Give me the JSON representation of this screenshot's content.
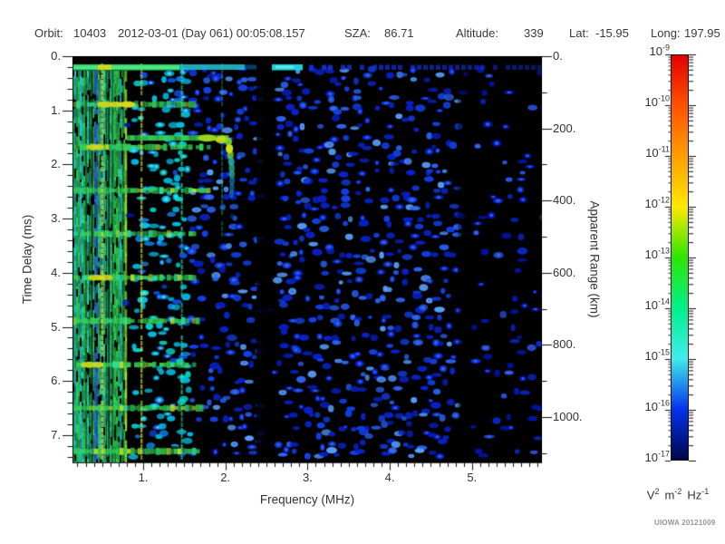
{
  "header": {
    "orbit_label": "Orbit:",
    "orbit_value": "10403",
    "datetime": "2012-03-01 (Day 061) 00:05:08.157",
    "sza_label": "SZA:",
    "sza_value": "86.71",
    "altitude_label": "Altitude:",
    "altitude_value": "339",
    "lat_label": "Lat:",
    "lat_value": "-15.95",
    "long_label": "Long:",
    "long_value": "197.95"
  },
  "watermark": "UIOWA 20121009",
  "chart_data": {
    "type": "heatmap",
    "description": "Radar sounder ionogram: echo spectral density vs frequency and apparent time delay",
    "xlabel": "Frequency (MHz)",
    "ylabel": "Time Delay (ms)",
    "y2label": "Apparent Range (km)",
    "x_range_mhz": [
      0.14,
      5.85
    ],
    "y_range_ms": [
      0,
      7.5
    ],
    "y2_range_km": [
      0,
      1125
    ],
    "x_major_values": [
      1,
      2,
      3,
      4,
      5
    ],
    "x_major_ticks": [
      "1.",
      "2.",
      "3.",
      "4.",
      "5."
    ],
    "x_minor_step_mhz": 0.1,
    "y_major_values": [
      0,
      1,
      2,
      3,
      4,
      5,
      6,
      7
    ],
    "y_major_ticks": [
      "0.",
      "1.",
      "2.",
      "3.",
      "4.",
      "5.",
      "6.",
      "7."
    ],
    "y_minor_step_ms": 0.2,
    "y2_major_values": [
      0,
      200,
      400,
      600,
      800,
      1000
    ],
    "y2_major_ticks": [
      "0.",
      "200.",
      "400.",
      "600.",
      "800.",
      "1000."
    ],
    "y2_minor_values": [
      100,
      300,
      500,
      700,
      900,
      1100
    ],
    "grid": false,
    "colorbar": {
      "scale": "log",
      "base_label": "10",
      "exponents": [
        "-9",
        "-10",
        "-11",
        "-12",
        "-13",
        "-14",
        "-15",
        "-16",
        "-17"
      ],
      "unit_parts": {
        "v": "V",
        "v_exp": "2",
        "m": "m",
        "m_exp": "-2",
        "hz": "Hz",
        "hz_exp": "-1"
      },
      "colors_top_to_bottom": [
        "#e00000",
        "#ff5200",
        "#ff9e00",
        "#ffe800",
        "#2de600",
        "#00f08c",
        "#40ecec",
        "#0433ee",
        "#00054a"
      ]
    },
    "features": {
      "surface_echo_delay_ms": 0.2,
      "plasma_harmonic_lines_mhz": [
        0.5,
        0.98,
        1.47,
        1.96
      ],
      "cyclotron_echo_delays_ms": [
        0.89,
        1.68,
        2.48,
        3.28,
        4.09,
        4.89,
        5.7,
        6.5,
        7.3
      ],
      "ionosphere_trace": {
        "branch_delay_ms": 1.51,
        "branch_f_range_mhz": [
          0.8,
          2.02
        ],
        "cusp_f_mhz": 2.06,
        "cusp_max_delay_ms": 2.55
      },
      "attenuation_bands_mhz": [
        [
          2.38,
          2.57
        ],
        [
          4.83,
          4.96
        ]
      ],
      "noise_regions": [
        {
          "f_range_mhz": [
            0.14,
            0.78
          ],
          "style": "dense-stripes",
          "density": 0.88,
          "palette": [
            "#2fd455",
            "#2cd8a8",
            "#22c8e0",
            "#a8e030",
            "#2f6fe0"
          ]
        },
        {
          "f_range_mhz": [
            0.78,
            1.5
          ],
          "style": "speckle",
          "density": 0.5,
          "palette": [
            "#00c0e8",
            "#1080e8",
            "#1048d8",
            "#00e0d0"
          ]
        },
        {
          "f_range_mhz": [
            1.5,
            2.38
          ],
          "style": "speckle",
          "density": 0.42,
          "palette": [
            "#0822cc",
            "#1240e8",
            "#2a62f5",
            "#58a0ff"
          ]
        },
        {
          "f_range_mhz": [
            2.57,
            4.83
          ],
          "style": "speckle",
          "density": 0.47,
          "palette": [
            "#0822cc",
            "#1240e8",
            "#2a62f5",
            "#58a0ff"
          ]
        },
        {
          "f_range_mhz": [
            4.96,
            5.85
          ],
          "style": "speckle",
          "density": 0.16,
          "palette": [
            "#0016b4",
            "#0a2ad0",
            "#2a55e8"
          ]
        }
      ]
    }
  }
}
